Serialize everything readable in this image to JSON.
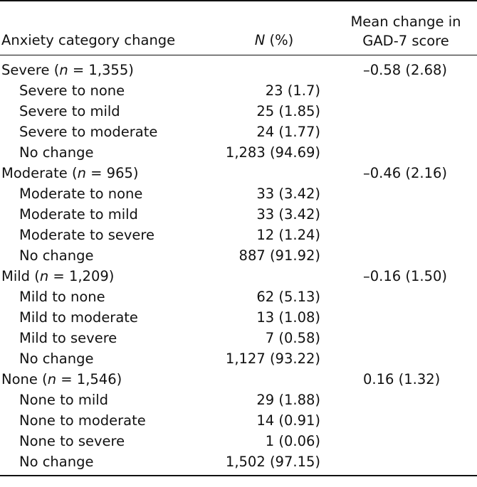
{
  "headers": {
    "category": "Anxiety category change",
    "n_label_italic": "N",
    "n_label_rest": " (%)",
    "mean_line1": "Mean change in",
    "mean_line2": "GAD-7 score"
  },
  "groups": [
    {
      "name": "Severe",
      "n_italic": "n",
      "n_rest": " = 1,355)",
      "mean": "–0.58 (2.68)",
      "rows": [
        {
          "label": "Severe to none",
          "n": "23 (1.7)"
        },
        {
          "label": "Severe to mild",
          "n": "25 (1.85)"
        },
        {
          "label": "Severe to moderate",
          "n": "24 (1.77)"
        },
        {
          "label": "No change",
          "n": "1,283 (94.69)"
        }
      ]
    },
    {
      "name": "Moderate",
      "n_italic": "n",
      "n_rest": " = 965)",
      "mean": "–0.46 (2.16)",
      "rows": [
        {
          "label": "Moderate to none",
          "n": "33 (3.42)"
        },
        {
          "label": "Moderate to mild",
          "n": "33 (3.42)"
        },
        {
          "label": "Moderate to severe",
          "n": "12 (1.24)"
        },
        {
          "label": "No change",
          "n": "887 (91.92)"
        }
      ]
    },
    {
      "name": "Mild",
      "n_italic": "n",
      "n_rest": " = 1,209)",
      "mean": "–0.16 (1.50)",
      "rows": [
        {
          "label": "Mild to none",
          "n": "62 (5.13)"
        },
        {
          "label": "Mild to moderate",
          "n": "13 (1.08)"
        },
        {
          "label": "Mild to severe",
          "n": "7 (0.58)"
        },
        {
          "label": "No change",
          "n": "1,127 (93.22)"
        }
      ]
    },
    {
      "name": "None",
      "n_italic": "n",
      "n_rest": " = 1,546)",
      "mean": "0.16 (1.32)",
      "rows": [
        {
          "label": "None to mild",
          "n": "29 (1.88)"
        },
        {
          "label": "None to moderate",
          "n": "14 (0.91)"
        },
        {
          "label": "None to severe",
          "n": "1 (0.06)"
        },
        {
          "label": "No change",
          "n": "1,502 (97.15)"
        }
      ]
    }
  ]
}
